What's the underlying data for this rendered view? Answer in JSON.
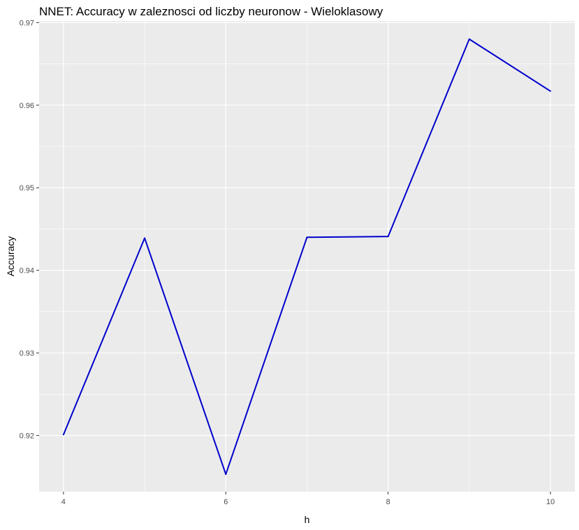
{
  "chart_data": {
    "type": "line",
    "title": "NNET: Accuracy w zaleznosci od liczby neuronow - Wieloklasowy",
    "xlabel": "h",
    "ylabel": "Accuracy",
    "x": [
      4,
      5,
      6,
      7,
      8,
      9,
      10
    ],
    "series": [
      {
        "values": [
          0.9201,
          0.9439,
          0.9153,
          0.944,
          0.9441,
          0.968,
          0.9617
        ]
      }
    ],
    "xlim": [
      3.7,
      10.3
    ],
    "ylim": [
      0.9132,
      0.9702
    ],
    "x_ticks": [
      4,
      6,
      8,
      10
    ],
    "x_tick_labels": [
      "4",
      "6",
      "8",
      "10"
    ],
    "y_ticks": [
      0.92,
      0.93,
      0.94,
      0.95,
      0.96,
      0.97
    ],
    "y_tick_labels": [
      "0.92",
      "0.93",
      "0.94",
      "0.95",
      "0.96",
      "0.97"
    ],
    "grid": true,
    "line_color": "#0000cd",
    "panel_color": "#ebebeb",
    "grid_color": "#ffffff"
  }
}
